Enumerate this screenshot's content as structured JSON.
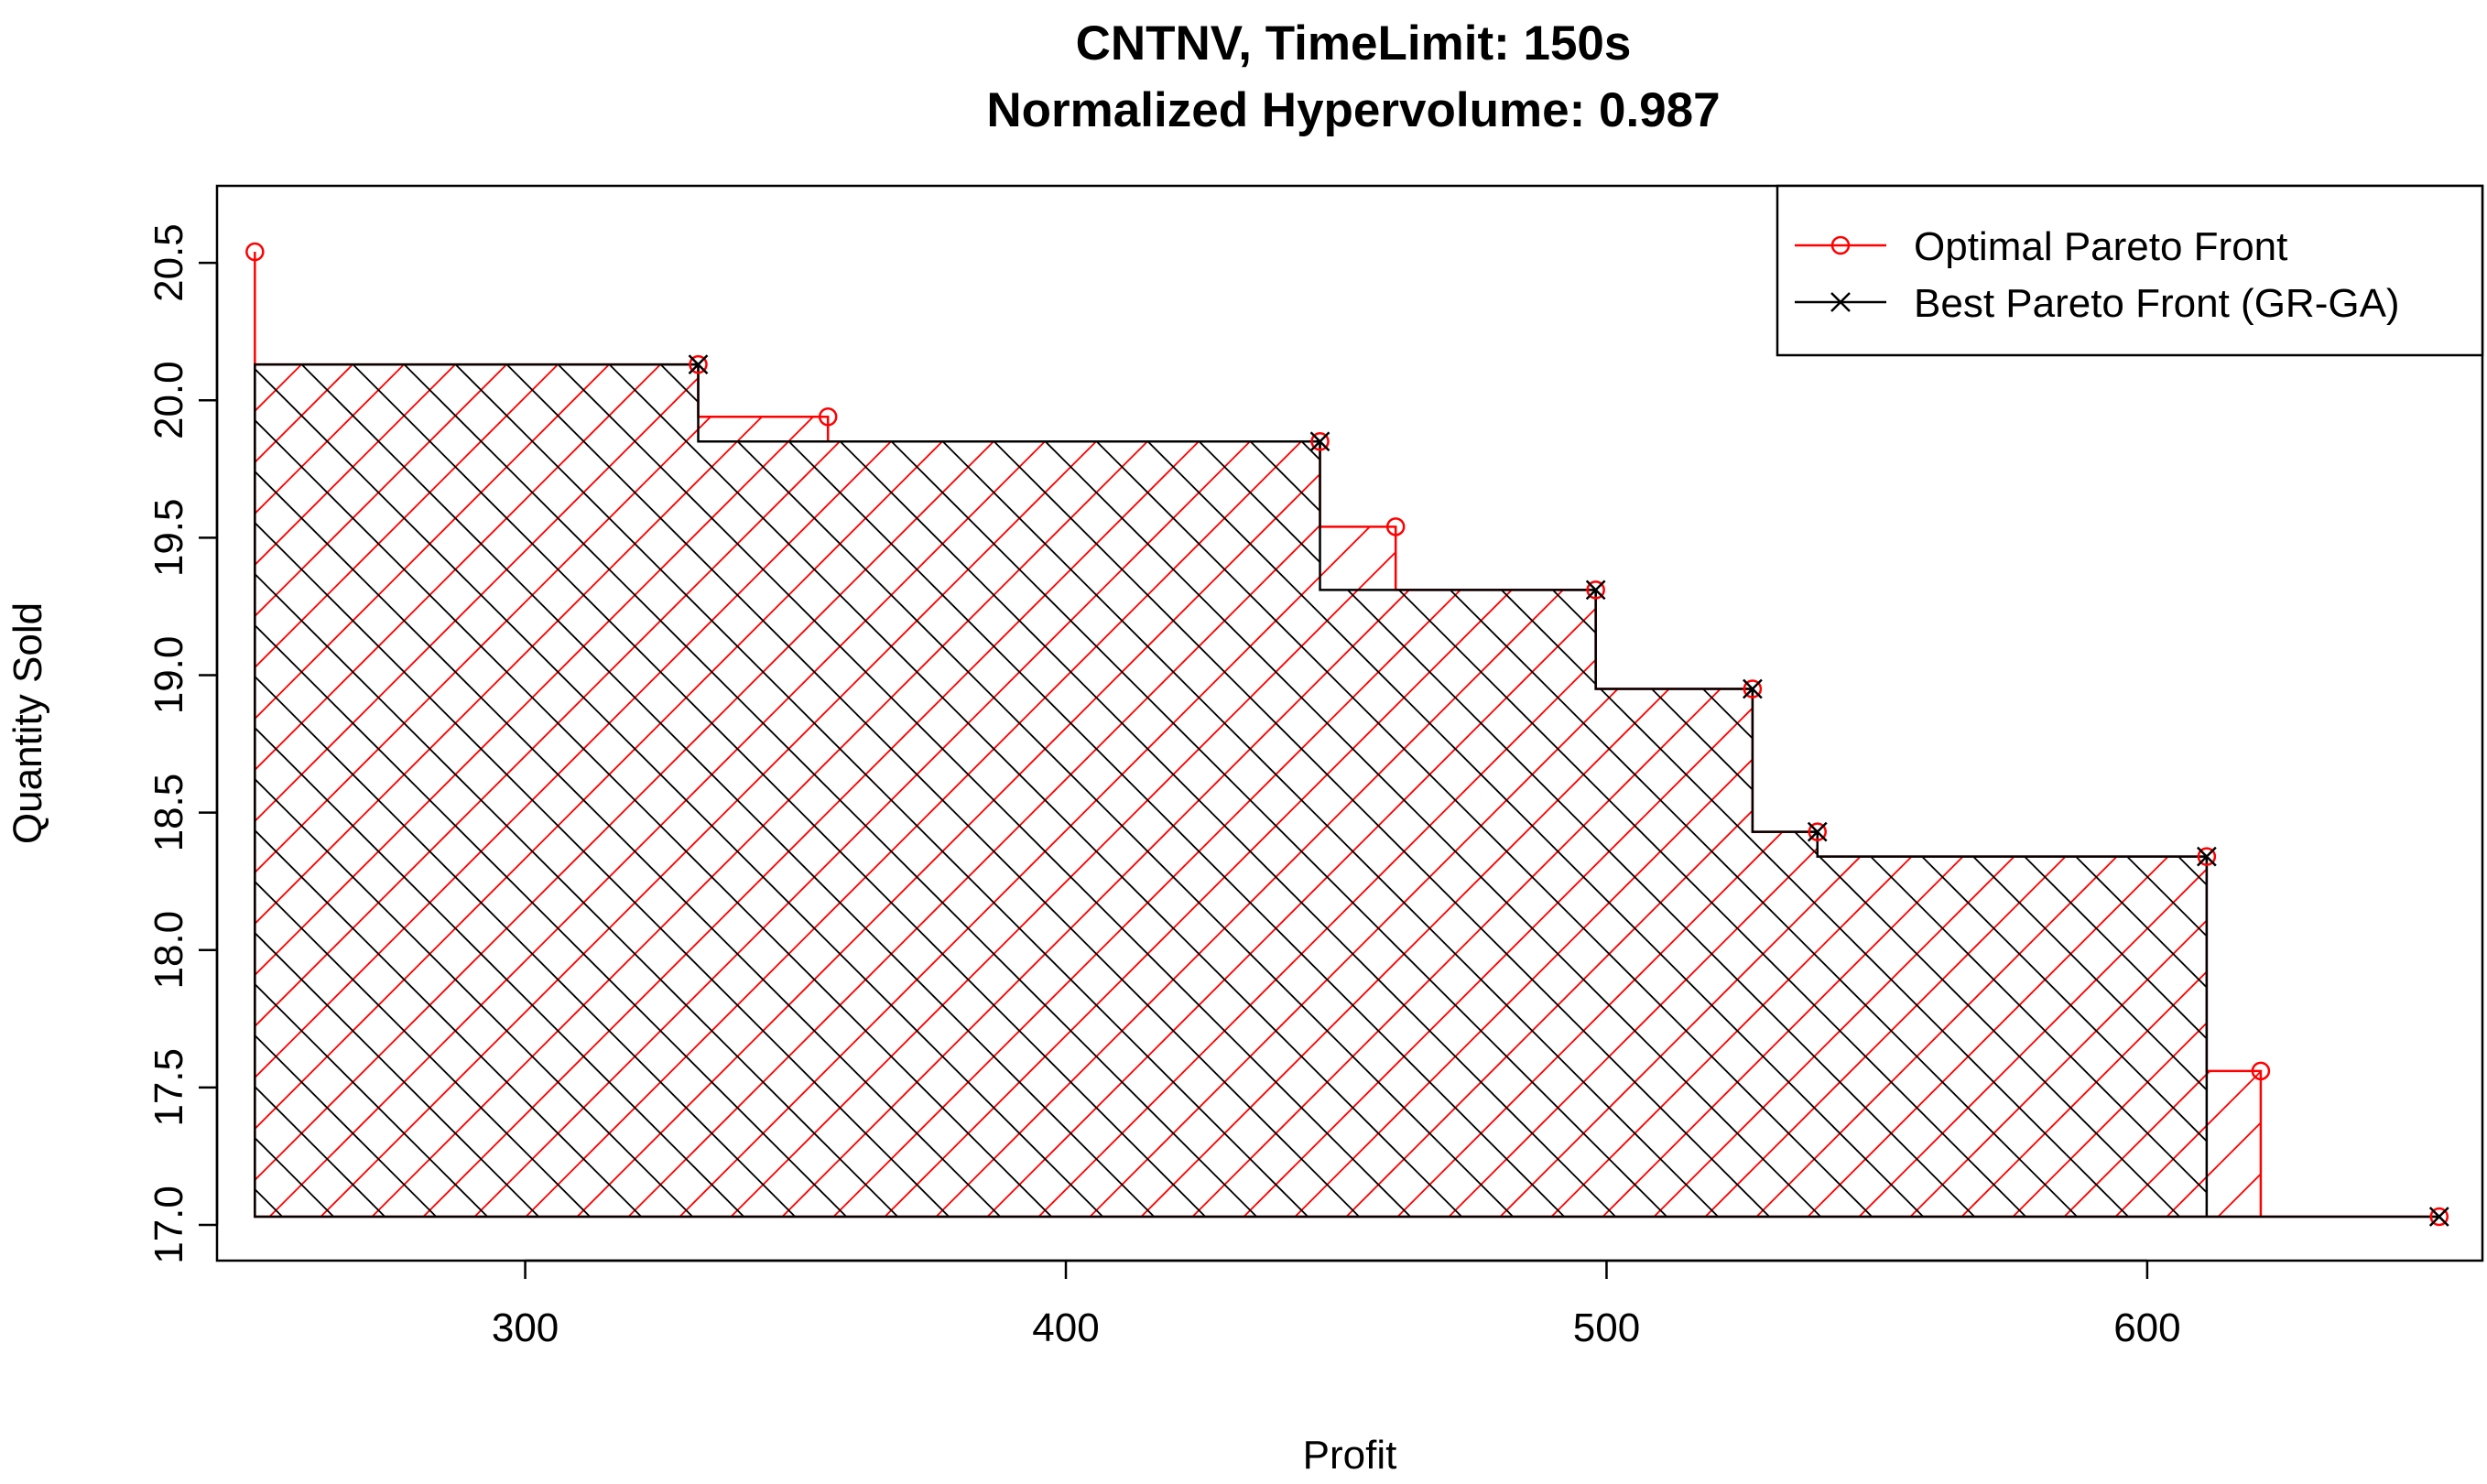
{
  "chart_data": {
    "type": "line",
    "title": "CNTNV, TimeLimit: 150s",
    "subtitle": "Normalized Hypervolume: 0.987",
    "xlabel": "Profit",
    "ylabel": "Quantity Sold",
    "xlim": [
      243,
      662
    ],
    "ylim": [
      16.87,
      20.78
    ],
    "x_ticks": [
      300,
      400,
      500,
      600
    ],
    "y_ticks": [
      17.0,
      17.5,
      18.0,
      18.5,
      19.0,
      19.5,
      20.0,
      20.5
    ],
    "x_tick_labels": [
      "300",
      "400",
      "500",
      "600"
    ],
    "y_tick_labels": [
      "17.0",
      "17.5",
      "18.0",
      "18.5",
      "19.0",
      "19.5",
      "20.0",
      "20.5"
    ],
    "grid": false,
    "legend_position": "top-right",
    "hatching": "step regions under each front filled with diagonal hatch lines",
    "series": [
      {
        "name": "Optimal Pareto Front",
        "color": "#ff0000",
        "marker": "circle",
        "hatch_angle": 45,
        "x": [
          250,
          332,
          356,
          447,
          461,
          498,
          527,
          539,
          611,
          621,
          654
        ],
        "y": [
          20.54,
          20.13,
          19.94,
          19.85,
          19.54,
          19.31,
          18.95,
          18.43,
          18.34,
          17.56,
          17.03
        ]
      },
      {
        "name": "Best Pareto Front (GR-GA)",
        "color": "#000000",
        "marker": "x",
        "hatch_angle": 135,
        "x": [
          332,
          447,
          498,
          527,
          539,
          611,
          654
        ],
        "y": [
          20.13,
          19.85,
          19.31,
          18.95,
          18.43,
          18.34,
          17.03
        ]
      }
    ]
  }
}
